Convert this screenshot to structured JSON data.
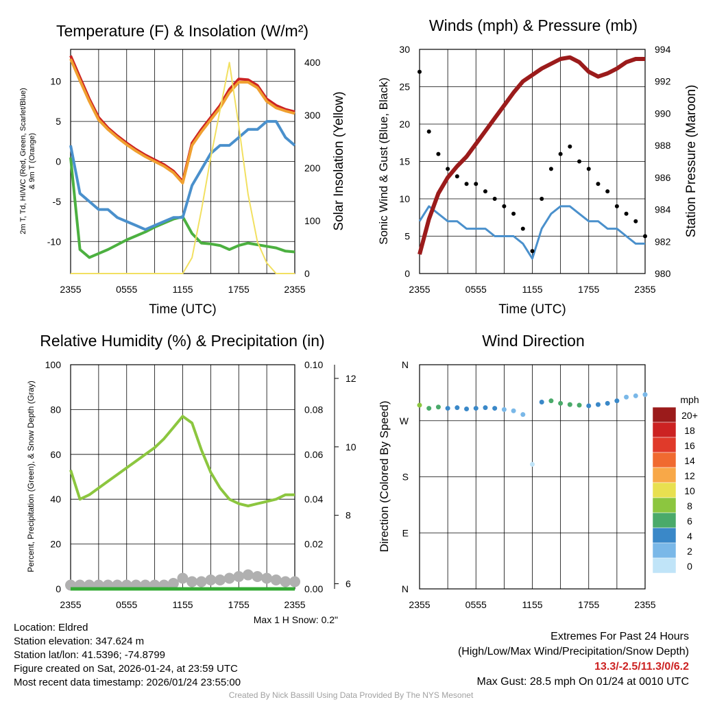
{
  "chart_data": [
    {
      "type": "line",
      "title": "Temperature (F) & Insolation (W/m²)",
      "xlabel": "Time (UTC)",
      "ylabel": "2m T, Td, HI/WC (Red, Green, Scarlet/Blue) & 9m T (Orange)",
      "ylabel_line1": "2m T, Td, HI/WC (Red, Green, Scarlet/Blue)",
      "ylabel_line2": "& 9m T (Orange)",
      "y2label": "Solar Insolation (Yellow)",
      "x_ticks": [
        "2355",
        "0555",
        "1155",
        "1755",
        "2355"
      ],
      "ylim": [
        -14,
        14
      ],
      "y_ticks": [
        10,
        5,
        0,
        -5,
        -10
      ],
      "y2lim": [
        0,
        425
      ],
      "y2_ticks": [
        0,
        100,
        200,
        300,
        400
      ],
      "x": [
        0,
        1,
        2,
        3,
        4,
        5,
        6,
        7,
        8,
        9,
        10,
        11,
        12,
        13,
        14,
        15,
        16,
        17,
        18,
        19,
        20,
        21,
        22,
        23,
        24
      ],
      "series": [
        {
          "name": "2m T",
          "color": "#cc2222",
          "axis": "left",
          "values": [
            13.2,
            10.5,
            7.8,
            5.5,
            4.2,
            3.2,
            2.3,
            1.5,
            0.8,
            0.2,
            -0.4,
            -1.2,
            -2.5,
            2.3,
            4.0,
            5.5,
            7.0,
            9.0,
            10.3,
            10.2,
            9.5,
            7.8,
            7.0,
            6.5,
            6.2
          ]
        },
        {
          "name": "9m T",
          "color": "#f0a030",
          "axis": "left",
          "values": [
            12.8,
            10.1,
            7.5,
            5.2,
            4.0,
            3.0,
            2.1,
            1.3,
            0.6,
            0.0,
            -0.6,
            -1.4,
            -2.7,
            2.0,
            3.7,
            5.2,
            6.7,
            8.6,
            9.9,
            9.9,
            9.2,
            7.5,
            6.7,
            6.3,
            6.0
          ]
        },
        {
          "name": "2m Td",
          "color": "#4cb040",
          "axis": "left",
          "values": [
            0.5,
            -11.0,
            -12.0,
            -11.5,
            -11.0,
            -10.4,
            -9.8,
            -9.3,
            -8.8,
            -8.2,
            -7.7,
            -7.2,
            -6.9,
            -9.0,
            -10.2,
            -10.3,
            -10.5,
            -11.0,
            -10.5,
            -10.2,
            -10.4,
            -10.6,
            -10.8,
            -11.2,
            -11.3
          ]
        },
        {
          "name": "HI/WC",
          "color": "#4a90cc",
          "axis": "left",
          "values": [
            2.0,
            -4.0,
            -5.0,
            -6.0,
            -6.0,
            -7.0,
            -7.5,
            -8.0,
            -8.5,
            -8.0,
            -7.5,
            -7.0,
            -7.0,
            -3.0,
            -1.0,
            1.0,
            2.0,
            2.0,
            3.0,
            4.0,
            4.0,
            5.0,
            5.0,
            3.0,
            2.0
          ]
        },
        {
          "name": "Solar Insolation",
          "color": "#f2e060",
          "axis": "right",
          "values": [
            0,
            0,
            0,
            0,
            0,
            0,
            0,
            0,
            0,
            0,
            0,
            0,
            0,
            30,
            120,
            220,
            310,
            400,
            280,
            150,
            60,
            20,
            0,
            0,
            0
          ]
        }
      ]
    },
    {
      "type": "scatter",
      "title": "Winds (mph) & Pressure (mb)",
      "xlabel": "Time (UTC)",
      "ylabel": "Sonic Wind & Gust (Blue, Black)",
      "y2label": "Station Pressure (Maroon)",
      "x_ticks": [
        "2355",
        "0555",
        "1155",
        "1755",
        "2355"
      ],
      "ylim": [
        0,
        30
      ],
      "y_ticks": [
        0,
        5,
        10,
        15,
        20,
        25,
        30
      ],
      "y2lim": [
        980,
        994
      ],
      "y2_ticks": [
        980,
        982,
        984,
        986,
        988,
        990,
        992,
        994
      ],
      "x": [
        0,
        1,
        2,
        3,
        4,
        5,
        6,
        7,
        8,
        9,
        10,
        11,
        12,
        13,
        14,
        15,
        16,
        17,
        18,
        19,
        20,
        21,
        22,
        23,
        24
      ],
      "series": [
        {
          "name": "Sonic Wind",
          "color": "#4a90cc",
          "axis": "left",
          "values": [
            7,
            9,
            8,
            7,
            7,
            6,
            6,
            6,
            5,
            5,
            5,
            4,
            2,
            6,
            8,
            9,
            9,
            8,
            7,
            7,
            6,
            6,
            5,
            4,
            4
          ]
        },
        {
          "name": "Gust",
          "color": "#000000",
          "axis": "left",
          "values": [
            27,
            19,
            16,
            14,
            13,
            12,
            12,
            11,
            10,
            9,
            8,
            6,
            3,
            10,
            14,
            16,
            17,
            15,
            14,
            12,
            11,
            9,
            8,
            7,
            5
          ]
        },
        {
          "name": "Station Pressure",
          "color": "#9b1b1b",
          "axis": "right",
          "values": [
            981.2,
            983.4,
            985.0,
            986.0,
            986.7,
            987.3,
            988.1,
            988.9,
            989.7,
            990.5,
            991.3,
            992.0,
            992.4,
            992.8,
            993.1,
            993.4,
            993.5,
            993.2,
            992.6,
            992.3,
            992.5,
            992.8,
            993.2,
            993.4,
            993.4
          ]
        }
      ]
    },
    {
      "type": "line",
      "title": "Relative Humidity (%) & Precipitation (in)",
      "xlabel": "",
      "ylabel": "Percent, Precipitation (Green), & Snow Depth (Gray)",
      "x_ticks": [
        "2355",
        "0555",
        "1155",
        "1755",
        "2355"
      ],
      "ylim": [
        0,
        100
      ],
      "y_ticks": [
        0,
        20,
        40,
        60,
        80,
        100
      ],
      "y2lim": [
        0,
        0.1
      ],
      "y2_ticks": [
        "0.00",
        "0.02",
        "0.04",
        "0.06",
        "0.08",
        "0.10"
      ],
      "y3lim": [
        5.85,
        12.4
      ],
      "y3_ticks": [
        6,
        8,
        10,
        12
      ],
      "x": [
        0,
        1,
        2,
        3,
        4,
        5,
        6,
        7,
        8,
        9,
        10,
        11,
        12,
        13,
        14,
        15,
        16,
        17,
        18,
        19,
        20,
        21,
        22,
        23,
        24
      ],
      "series": [
        {
          "name": "Relative Humidity",
          "color": "#8cc63f",
          "axis": "left",
          "values": [
            53,
            40,
            42,
            45,
            48,
            51,
            54,
            57,
            60,
            63,
            67,
            72,
            77,
            74,
            62,
            52,
            45,
            40,
            38,
            37,
            38,
            39,
            40,
            42,
            42
          ]
        },
        {
          "name": "Precipitation",
          "color": "#33aa33",
          "axis": "right",
          "values": [
            0,
            0,
            0,
            0,
            0,
            0,
            0,
            0,
            0,
            0,
            0,
            0,
            0,
            0,
            0,
            0,
            0,
            0,
            0,
            0,
            0,
            0,
            0,
            0,
            0
          ]
        },
        {
          "name": "Snow Depth",
          "color": "#b0b0b0",
          "axis": "far-right",
          "values": [
            6.0,
            6.0,
            6.0,
            6.0,
            6.0,
            6.0,
            6.0,
            6.0,
            6.0,
            6.0,
            6.0,
            6.05,
            6.2,
            6.1,
            6.1,
            6.15,
            6.15,
            6.2,
            6.25,
            6.3,
            6.25,
            6.2,
            6.15,
            6.1,
            6.1
          ]
        }
      ]
    },
    {
      "type": "scatter",
      "title": "Wind Direction",
      "xlabel": "",
      "ylabel": "Direction (Colored By Speed)",
      "x_ticks": [
        "2355",
        "0555",
        "1155",
        "1755",
        "2355"
      ],
      "y_ticks": [
        "N",
        "W",
        "S",
        "E",
        "N"
      ],
      "ylim": [
        0,
        360
      ],
      "colorbar_title": "mph",
      "colorbar_labels": [
        "20+",
        "18",
        "16",
        "14",
        "12",
        "10",
        "8",
        "6",
        "4",
        "2",
        "0"
      ],
      "colorbar_colors": [
        "#9b1b1b",
        "#cc2222",
        "#e03a2a",
        "#f06a30",
        "#f8a848",
        "#e8e050",
        "#8cc63f",
        "#4aaa6a",
        "#3a88c8",
        "#7ab8e8",
        "#c0e4f8"
      ],
      "x": [
        0,
        1,
        2,
        3,
        4,
        5,
        6,
        7,
        8,
        9,
        10,
        11,
        12,
        13,
        14,
        15,
        16,
        17,
        18,
        19,
        20,
        21,
        22,
        23,
        24
      ],
      "series": [
        {
          "name": "Wind Direction",
          "color": "by-speed",
          "values": [
            295,
            290,
            292,
            290,
            291,
            289,
            290,
            291,
            290,
            288,
            286,
            280,
            200,
            300,
            302,
            298,
            296,
            295,
            294,
            296,
            298,
            302,
            308,
            310,
            312
          ]
        },
        {
          "name": "Speed",
          "color": "#000000",
          "values": [
            8,
            6,
            6,
            5,
            4,
            4,
            5,
            4,
            4,
            3,
            2,
            2,
            1,
            5,
            6,
            7,
            7,
            6,
            5,
            5,
            4,
            4,
            3,
            2,
            2
          ]
        }
      ]
    }
  ],
  "snow_note": "Max 1 H Snow: 0.2\"",
  "info": {
    "location": "Location: Eldred",
    "elevation": "Station elevation: 347.624 m",
    "latlon": "Station lat/lon: 41.5396; -74.8799",
    "created": "Figure created on Sat, 2026-01-24, at 23:59 UTC",
    "recent": "Most recent data timestamp: 2026/01/24 23:55:00"
  },
  "extremes": {
    "heading": "Extremes For Past 24 Hours",
    "legend": "(High/Low/Max Wind/Precipitation/Snow Depth)",
    "values": "13.3/-2.5/11.3/0/6.2",
    "gust": "Max Gust: 28.5 mph On 01/24 at 0010 UTC"
  },
  "credit": "Created By Nick Bassill Using Data Provided By The NYS Mesonet"
}
